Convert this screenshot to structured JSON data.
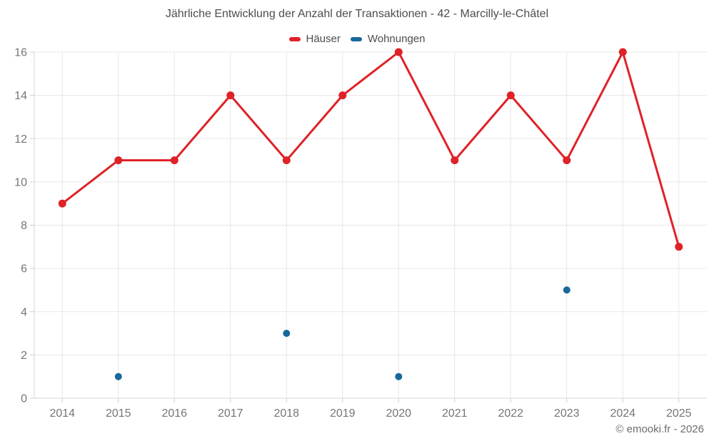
{
  "title": "Jährliche Entwicklung der Anzahl der Transaktionen - 42 - Marcilly-le-Châtel",
  "copyright": "© emooki.fr - 2026",
  "colors": {
    "haeuser": "#df2228",
    "wohnungen": "#17689c",
    "gridline": "#e7e7e7",
    "axis_line": "#d6d6d6",
    "tick_mark": "#cccccc",
    "tick_text": "#757575",
    "title_text": "#4d4d4d"
  },
  "chart_data": {
    "type": "line",
    "title": "Jährliche Entwicklung der Anzahl der Transaktionen - 42 - Marcilly-le-Châtel",
    "categories": [
      "2014",
      "2015",
      "2016",
      "2017",
      "2018",
      "2019",
      "2020",
      "2021",
      "2022",
      "2023",
      "2024",
      "2025"
    ],
    "series": [
      {
        "name": "Häuser",
        "color": "#df2228",
        "type": "line",
        "marker_radius": 5.5,
        "values": [
          9,
          11,
          11,
          14,
          11,
          14,
          16,
          11,
          14,
          11,
          16,
          7
        ]
      },
      {
        "name": "Wohnungen",
        "color": "#17689c",
        "type": "line",
        "marker_radius": 5,
        "values": [
          null,
          1,
          null,
          null,
          3,
          null,
          1,
          null,
          null,
          5,
          null,
          null
        ]
      }
    ],
    "xlabel": "",
    "ylabel": "",
    "ylim": [
      0,
      16
    ],
    "yticks": [
      0,
      2,
      4,
      6,
      8,
      10,
      12,
      14,
      16
    ],
    "grid": true,
    "legend_position": "top"
  }
}
